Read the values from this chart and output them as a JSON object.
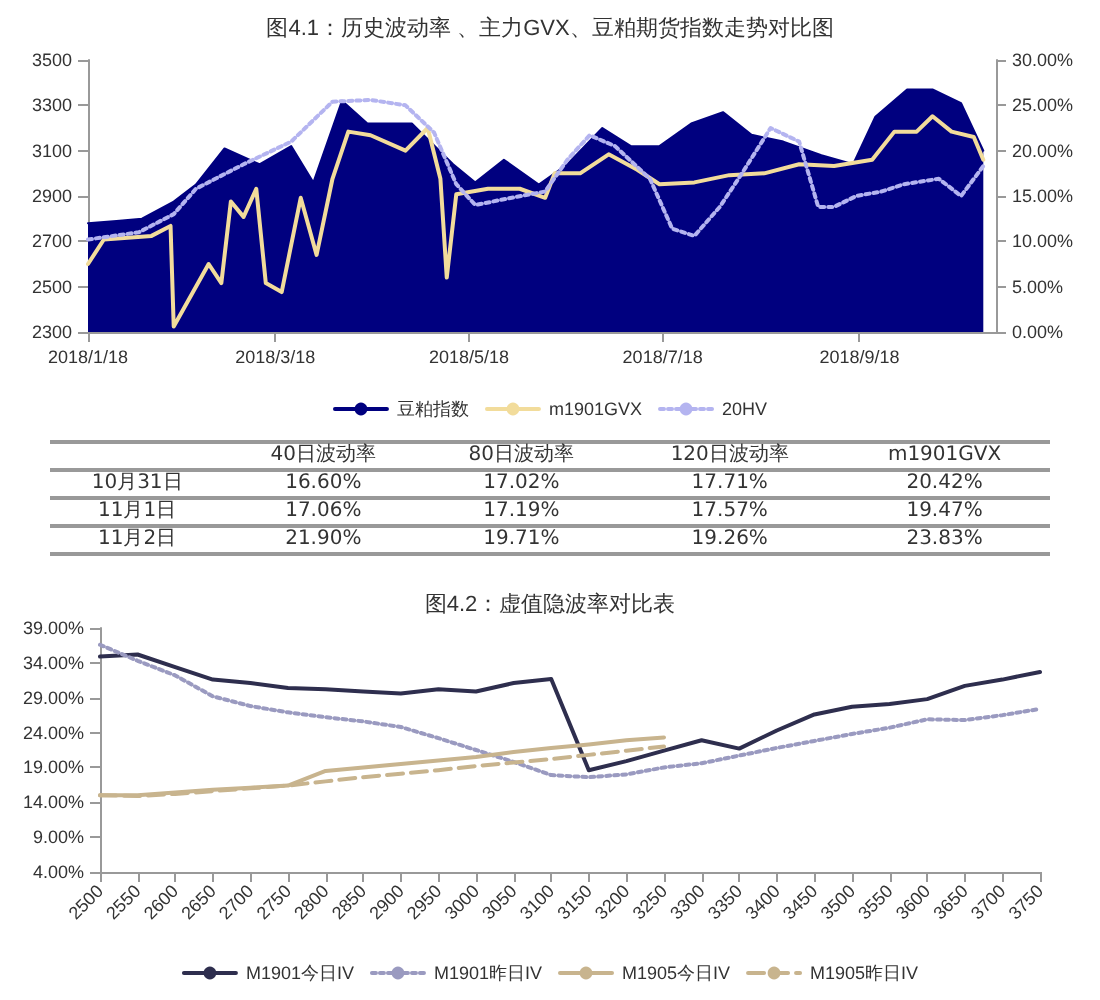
{
  "chart_data": [
    {
      "type": "line",
      "title": "图4.1：历史波动率 、主力GVX、豆粕期货指数走势对比图",
      "xlim": [
        "2018-01-18",
        "2018-10-31"
      ],
      "xticks": [
        {
          "value": "2018-01-18",
          "label": "2018/1/18"
        },
        {
          "value": "2018-03-18",
          "label": "2018/3/18"
        },
        {
          "value": "2018-05-18",
          "label": "2018/5/18"
        },
        {
          "value": "2018-07-18",
          "label": "2018/7/18"
        },
        {
          "value": "2018-09-18",
          "label": "2018/9/18"
        }
      ],
      "ylim": [
        2300,
        3500
      ],
      "yticks": [
        2300,
        2500,
        2700,
        2900,
        3100,
        3300,
        3500
      ],
      "y2lim": [
        0,
        30
      ],
      "y2ticks": [
        {
          "value": 0,
          "label": "0.00%"
        },
        {
          "value": 5,
          "label": "5.00%"
        },
        {
          "value": 10,
          "label": "10.00%"
        },
        {
          "value": 15,
          "label": "15.00%"
        },
        {
          "value": 20,
          "label": "20.00%"
        },
        {
          "value": 25,
          "label": "25.00%"
        },
        {
          "value": 30,
          "label": "30.00%"
        }
      ],
      "grid": false,
      "legend": "bottom",
      "marker": "none",
      "series": [
        {
          "name": "豆粕指数",
          "type": "area",
          "color": "#00007f",
          "x": [
            "2018-01-18",
            "2018-01-27",
            "2018-02-04",
            "2018-02-14",
            "2018-02-21",
            "2018-03-02",
            "2018-03-13",
            "2018-03-23",
            "2018-03-30",
            "2018-04-08",
            "2018-04-16",
            "2018-04-30",
            "2018-05-13",
            "2018-05-20",
            "2018-05-29",
            "2018-06-09",
            "2018-06-18",
            "2018-06-29",
            "2018-07-08",
            "2018-07-17",
            "2018-07-27",
            "2018-08-06",
            "2018-08-15",
            "2018-08-25",
            "2018-09-06",
            "2018-09-16",
            "2018-09-23",
            "2018-10-03",
            "2018-10-11",
            "2018-10-20",
            "2018-10-27"
          ],
          "values": [
            2780,
            2790,
            2800,
            2875,
            2950,
            3110,
            3040,
            3120,
            2960,
            3320,
            3220,
            3220,
            3040,
            2960,
            3060,
            2950,
            3040,
            3200,
            3120,
            3120,
            3220,
            3270,
            3170,
            3140,
            3080,
            3040,
            3250,
            3370,
            3370,
            3310,
            3100
          ]
        },
        {
          "name": "m1901GVX",
          "type": "line",
          "axis": "y2",
          "color": "#f2dc9b",
          "line_style": "solid",
          "x": [
            "2018-01-18",
            "2018-01-23",
            "2018-02-07",
            "2018-02-13",
            "2018-02-14",
            "2018-02-25",
            "2018-03-01",
            "2018-03-04",
            "2018-03-08",
            "2018-03-12",
            "2018-03-15",
            "2018-03-20",
            "2018-03-26",
            "2018-03-31",
            "2018-04-05",
            "2018-04-10",
            "2018-04-17",
            "2018-04-28",
            "2018-05-05",
            "2018-05-09",
            "2018-05-11",
            "2018-05-14",
            "2018-05-24",
            "2018-06-03",
            "2018-06-11",
            "2018-06-14",
            "2018-06-22",
            "2018-07-01",
            "2018-07-10",
            "2018-07-17",
            "2018-07-28",
            "2018-08-08",
            "2018-08-19",
            "2018-08-30",
            "2018-09-10",
            "2018-09-22",
            "2018-09-29",
            "2018-10-06",
            "2018-10-11",
            "2018-10-17",
            "2018-10-24",
            "2018-10-27"
          ],
          "values": [
            7.5,
            10.2,
            10.6,
            11.7,
            0.6,
            7.5,
            5.4,
            14.4,
            12.7,
            15.8,
            5.4,
            4.4,
            14.8,
            8.5,
            16.9,
            22.1,
            21.7,
            20,
            22.5,
            16.9,
            6,
            15.2,
            15.8,
            15.8,
            14.8,
            17.5,
            17.5,
            19.6,
            17.9,
            16.3,
            16.5,
            17.3,
            17.5,
            18.5,
            18.3,
            19,
            22.1,
            22.1,
            23.8,
            22.1,
            21.5,
            19
          ]
        },
        {
          "name": "20HV",
          "type": "line",
          "axis": "y2",
          "color": "#b4b4f0",
          "line_style": "dotted",
          "x": [
            "2018-01-18",
            "2018-02-03",
            "2018-02-14",
            "2018-02-21",
            "2018-03-08",
            "2018-03-23",
            "2018-04-05",
            "2018-04-17",
            "2018-04-28",
            "2018-05-07",
            "2018-05-14",
            "2018-05-20",
            "2018-05-27",
            "2018-06-11",
            "2018-06-18",
            "2018-06-25",
            "2018-07-03",
            "2018-07-14",
            "2018-07-21",
            "2018-07-28",
            "2018-08-05",
            "2018-08-12",
            "2018-08-21",
            "2018-08-30",
            "2018-09-05",
            "2018-09-10",
            "2018-09-17",
            "2018-09-25",
            "2018-10-02",
            "2018-10-13",
            "2018-10-20",
            "2018-10-27"
          ],
          "values": [
            10.2,
            11,
            13,
            15.8,
            18.5,
            21,
            25.4,
            25.6,
            25,
            22,
            16.3,
            14,
            14.5,
            15.5,
            19,
            21.7,
            20.5,
            16.9,
            11.4,
            10.6,
            13.8,
            17.5,
            22.5,
            21,
            13.8,
            13.8,
            15,
            15.5,
            16.3,
            16.9,
            15,
            18.3
          ]
        }
      ]
    },
    {
      "type": "other",
      "categories": [
        "40日波动率",
        "80日波动率",
        "120日波动率",
        "m1901GVX"
      ],
      "y_categories": [
        "10月31日",
        "11月1日",
        "11月2日"
      ],
      "cell_labels": [
        [
          "16.60%",
          "17.02%",
          "17.71%",
          "20.42%"
        ],
        [
          "17.06%",
          "17.19%",
          "17.57%",
          "19.47%"
        ],
        [
          "21.90%",
          "19.71%",
          "19.26%",
          "23.83%"
        ]
      ]
    },
    {
      "type": "line",
      "title": "图4.2：虚值隐波率对比表",
      "categories": [
        "2500",
        "2550",
        "2600",
        "2650",
        "2700",
        "2750",
        "2800",
        "2850",
        "2900",
        "2950",
        "3000",
        "3050",
        "3100",
        "3150",
        "3200",
        "3250",
        "3300",
        "3350",
        "3400",
        "3450",
        "3500",
        "3550",
        "3600",
        "3650",
        "3700",
        "3750"
      ],
      "ylim": [
        4,
        39
      ],
      "yticks": [
        {
          "value": 4,
          "label": "4.00%"
        },
        {
          "value": 9,
          "label": "9.00%"
        },
        {
          "value": 14,
          "label": "14.00%"
        },
        {
          "value": 19,
          "label": "19.00%"
        },
        {
          "value": 24,
          "label": "24.00%"
        },
        {
          "value": 29,
          "label": "29.00%"
        },
        {
          "value": 34,
          "label": "34.00%"
        },
        {
          "value": 39,
          "label": "39.00%"
        }
      ],
      "grid": false,
      "legend": "bottom",
      "marker": "none",
      "series": [
        {
          "name": "M1901今日IV",
          "color": "#2e2e4e",
          "line_style": "solid",
          "values": [
            34.9,
            35.2,
            33.4,
            31.6,
            31.1,
            30.4,
            30.2,
            29.9,
            29.6,
            30.2,
            29.9,
            31.1,
            31.7,
            18.6,
            19.9,
            21.4,
            22.9,
            21.7,
            24.3,
            26.6,
            27.7,
            28.1,
            28.8,
            30.7,
            31.6,
            32.7
          ]
        },
        {
          "name": "M1901昨日IV",
          "color": "#9a9ac0",
          "line_style": "dotted",
          "values": [
            36.6,
            34.3,
            32.2,
            29.2,
            27.8,
            26.9,
            26.2,
            25.6,
            24.8,
            23.2,
            21.5,
            19.8,
            17.9,
            17.6,
            18,
            19,
            19.6,
            20.7,
            21.8,
            22.8,
            23.8,
            24.7,
            25.9,
            25.8,
            26.5,
            27.4
          ]
        },
        {
          "name": "M1905今日IV",
          "color": "#c8b48e",
          "line_style": "solid",
          "values": [
            15,
            15,
            15.4,
            15.8,
            16.1,
            16.4,
            18.5,
            19,
            19.5,
            20,
            20.5,
            21.2,
            21.8,
            22.3,
            22.9,
            23.3,
            null,
            null,
            null,
            null,
            null,
            null,
            null,
            null,
            null,
            null
          ]
        },
        {
          "name": "M1905昨日IV",
          "color": "#c8b48e",
          "line_style": "dashed",
          "values": [
            15,
            14.9,
            15.2,
            15.6,
            16,
            16.4,
            17,
            17.6,
            18.1,
            18.6,
            19.2,
            19.7,
            20.2,
            20.8,
            21.4,
            22,
            null,
            null,
            null,
            null,
            null,
            null,
            null,
            null,
            null,
            null
          ]
        }
      ]
    }
  ]
}
